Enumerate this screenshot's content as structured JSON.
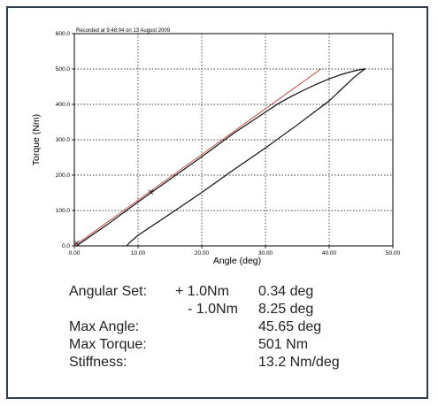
{
  "chart_data": {
    "type": "line",
    "recorded_text": "Recorded at 9:48:04 on 13 August 2009",
    "xlabel": "Angle (deg)",
    "ylabel": "Torque (Nm)",
    "xlim": [
      0,
      50
    ],
    "ylim": [
      0,
      600
    ],
    "x_ticks": [
      "0.00",
      "10.00",
      "20.00",
      "30.00",
      "40.00",
      "50.00"
    ],
    "y_ticks": [
      "0.0",
      "100.0",
      "200.0",
      "300.0",
      "400.0",
      "500.0",
      "600.0"
    ],
    "grid": true,
    "series": [
      {
        "color": "#c0392b",
        "x": [
          0.0,
          38.7
        ],
        "y": [
          0,
          500
        ]
      },
      {
        "color": "#111111",
        "x": [
          0.34,
          5,
          10,
          15,
          20,
          25,
          30,
          32,
          34,
          36,
          38,
          40,
          42,
          44,
          45.65
        ],
        "y": [
          0,
          58,
          124,
          188,
          252,
          318,
          378,
          402,
          422,
          440,
          457,
          472,
          485,
          495,
          501
        ]
      },
      {
        "color": "#111111",
        "x": [
          45.65,
          44,
          40,
          35,
          30,
          25,
          20,
          15,
          10,
          8.6,
          8.25
        ],
        "y": [
          501,
          478,
          410,
          342,
          277,
          215,
          151,
          90,
          30,
          8,
          0
        ]
      }
    ],
    "markers": [
      {
        "x": 0.34,
        "y": 8
      },
      {
        "x": 12.0,
        "y": 152
      }
    ]
  },
  "stats": {
    "angular_set_label": "Angular Set:",
    "plus_label": "+ 1.0Nm",
    "plus_value": "0.34 deg",
    "minus_label": "- 1.0Nm",
    "minus_value": "8.25  deg",
    "max_angle_label": "Max Angle:",
    "max_angle_value": "45.65 deg",
    "max_torque_label": "Max Torque:",
    "max_torque_value": "501 Nm",
    "stiffness_label": "Stiffness:",
    "stiffness_value": "13.2 Nm/deg"
  }
}
